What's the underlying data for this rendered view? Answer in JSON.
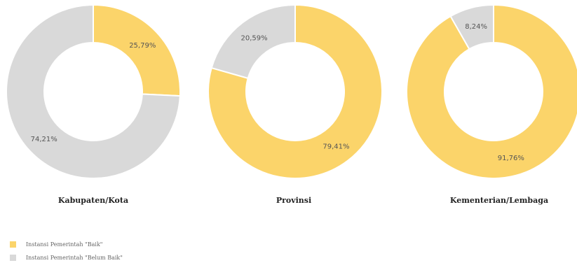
{
  "colors": {
    "baik": "#FBD46A",
    "belum_baik": "#D9D9D9"
  },
  "chart_data": [
    {
      "type": "pie",
      "title": "Kabupaten/Kota",
      "slices": [
        {
          "name": "Instansi Pemerintah \"Baik\"",
          "value": 25.79,
          "label": "25,79%"
        },
        {
          "name": "Instansi Pemerintah \"Belum Baik\"",
          "value": 74.21,
          "label": "74,21%"
        }
      ]
    },
    {
      "type": "pie",
      "title": "Provinsi",
      "slices": [
        {
          "name": "Instansi Pemerintah \"Baik\"",
          "value": 79.41,
          "label": "79,41%"
        },
        {
          "name": "Instansi Pemerintah \"Belum Baik\"",
          "value": 20.59,
          "label": "20,59%"
        }
      ]
    },
    {
      "type": "pie",
      "title": "Kementerian/Lembaga",
      "slices": [
        {
          "name": "Instansi Pemerintah \"Baik\"",
          "value": 91.76,
          "label": "91,76%"
        },
        {
          "name": "Instansi Pemerintah \"Belum Baik\"",
          "value": 8.24,
          "label": "8,24%"
        }
      ]
    }
  ],
  "legend": {
    "items": [
      {
        "label": "Instansi Pemerintah \"Baik\"",
        "color": "#FBD46A"
      },
      {
        "label": "Instansi Pemerintah \"Belum Baik\"",
        "color": "#D9D9D9"
      }
    ]
  }
}
